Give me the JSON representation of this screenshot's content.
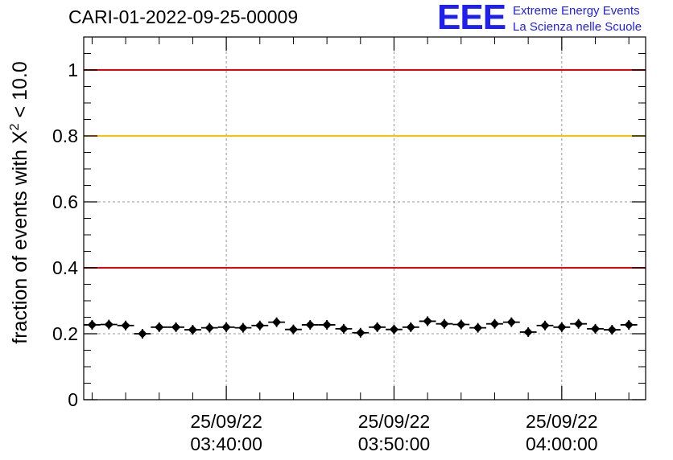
{
  "header": {
    "run_title": "CARI-01-2022-09-25-00009",
    "logo_mark": "EEE",
    "logo_line1": "Extreme Energy Events",
    "logo_line2": "La Scienza nelle Scuole",
    "logo_color": "#1f1ff0"
  },
  "chart_data": {
    "type": "scatter",
    "title": "CARI-01-2022-09-25-00009",
    "ylabel": "fraction of events with χ² < 10.0",
    "ylabel_parts": {
      "before": "fraction of events with X",
      "sup": "2",
      "after": " < 10.0"
    },
    "xlabel": "",
    "x_time_start": "03:31:30",
    "x_time_end": "04:05:00",
    "xlim_seconds_from_0330": [
      90,
      2100
    ],
    "ylim": [
      0,
      1.1
    ],
    "y_ticks": [
      "0",
      "0.2",
      "0.4",
      "0.6",
      "0.8",
      "1"
    ],
    "y_tick_values": [
      0,
      0.2,
      0.4,
      0.6,
      0.8,
      1.0
    ],
    "x_ticks": [
      {
        "time_s": 600,
        "line1": "25/09/22",
        "line2": "03:40:00"
      },
      {
        "time_s": 1200,
        "line1": "25/09/22",
        "line2": "03:50:00"
      },
      {
        "time_s": 1800,
        "line1": "25/09/22",
        "line2": "04:00:00"
      }
    ],
    "grid": true,
    "reference_lines": [
      {
        "y": 1.0,
        "color": "#e8000b"
      },
      {
        "y": 0.8,
        "color": "#ffc000"
      },
      {
        "y": 0.4,
        "color": "#e8000b"
      }
    ],
    "bin_width_s": 60,
    "points": [
      {
        "t": 120,
        "y": 0.227
      },
      {
        "t": 180,
        "y": 0.228
      },
      {
        "t": 240,
        "y": 0.225
      },
      {
        "t": 300,
        "y": 0.2
      },
      {
        "t": 360,
        "y": 0.22
      },
      {
        "t": 420,
        "y": 0.22
      },
      {
        "t": 480,
        "y": 0.212
      },
      {
        "t": 540,
        "y": 0.218
      },
      {
        "t": 600,
        "y": 0.22
      },
      {
        "t": 660,
        "y": 0.218
      },
      {
        "t": 720,
        "y": 0.225
      },
      {
        "t": 780,
        "y": 0.235
      },
      {
        "t": 840,
        "y": 0.213
      },
      {
        "t": 900,
        "y": 0.227
      },
      {
        "t": 960,
        "y": 0.227
      },
      {
        "t": 1020,
        "y": 0.215
      },
      {
        "t": 1080,
        "y": 0.203
      },
      {
        "t": 1140,
        "y": 0.22
      },
      {
        "t": 1200,
        "y": 0.213
      },
      {
        "t": 1260,
        "y": 0.22
      },
      {
        "t": 1320,
        "y": 0.238
      },
      {
        "t": 1380,
        "y": 0.23
      },
      {
        "t": 1440,
        "y": 0.228
      },
      {
        "t": 1500,
        "y": 0.218
      },
      {
        "t": 1560,
        "y": 0.23
      },
      {
        "t": 1620,
        "y": 0.235
      },
      {
        "t": 1680,
        "y": 0.205
      },
      {
        "t": 1740,
        "y": 0.225
      },
      {
        "t": 1800,
        "y": 0.22
      },
      {
        "t": 1860,
        "y": 0.23
      },
      {
        "t": 1920,
        "y": 0.215
      },
      {
        "t": 1980,
        "y": 0.212
      },
      {
        "t": 2040,
        "y": 0.227
      }
    ]
  }
}
